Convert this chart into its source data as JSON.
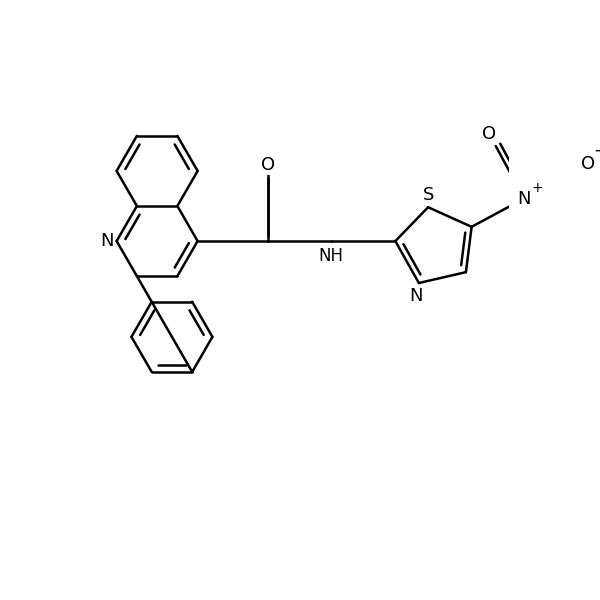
{
  "bg": "#ffffff",
  "lc": "#000000",
  "lw": 1.8,
  "fig_size": [
    6.0,
    6.0
  ],
  "dpi": 100,
  "xlim": [
    0,
    10
  ],
  "ylim": [
    0,
    10
  ]
}
